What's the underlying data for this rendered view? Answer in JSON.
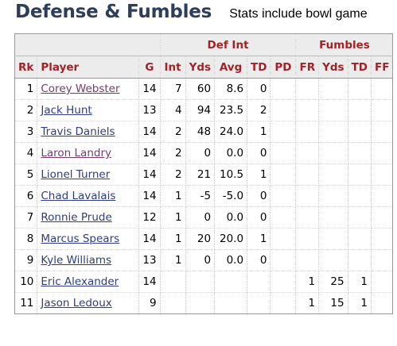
{
  "page": {
    "title": "Defense & Fumbles",
    "subtitle": "Stats include bowl game"
  },
  "table": {
    "over_headers": {
      "def_int": "Def Int",
      "fumbles": "Fumbles"
    },
    "columns": [
      "Rk",
      "Player",
      "G",
      "Int",
      "Yds",
      "Avg",
      "TD",
      "PD",
      "FR",
      "Yds",
      "TD",
      "FF"
    ],
    "rows": [
      {
        "rk": "1",
        "player": "Corey Webster",
        "visited": true,
        "g": "14",
        "int": "7",
        "int_yds": "60",
        "avg": "8.6",
        "int_td": "0",
        "pd": "",
        "fr": "",
        "fr_yds": "",
        "fr_td": "",
        "ff": ""
      },
      {
        "rk": "2",
        "player": "Jack Hunt",
        "visited": false,
        "g": "13",
        "int": "4",
        "int_yds": "94",
        "avg": "23.5",
        "int_td": "2",
        "pd": "",
        "fr": "",
        "fr_yds": "",
        "fr_td": "",
        "ff": ""
      },
      {
        "rk": "3",
        "player": "Travis Daniels",
        "visited": false,
        "g": "14",
        "int": "2",
        "int_yds": "48",
        "avg": "24.0",
        "int_td": "1",
        "pd": "",
        "fr": "",
        "fr_yds": "",
        "fr_td": "",
        "ff": ""
      },
      {
        "rk": "4",
        "player": "Laron Landry",
        "visited": true,
        "g": "14",
        "int": "2",
        "int_yds": "0",
        "avg": "0.0",
        "int_td": "0",
        "pd": "",
        "fr": "",
        "fr_yds": "",
        "fr_td": "",
        "ff": ""
      },
      {
        "rk": "5",
        "player": "Lionel Turner",
        "visited": false,
        "g": "14",
        "int": "2",
        "int_yds": "21",
        "avg": "10.5",
        "int_td": "1",
        "pd": "",
        "fr": "",
        "fr_yds": "",
        "fr_td": "",
        "ff": ""
      },
      {
        "rk": "6",
        "player": "Chad Lavalais",
        "visited": false,
        "g": "14",
        "int": "1",
        "int_yds": "-5",
        "avg": "-5.0",
        "int_td": "0",
        "pd": "",
        "fr": "",
        "fr_yds": "",
        "fr_td": "",
        "ff": ""
      },
      {
        "rk": "7",
        "player": "Ronnie Prude",
        "visited": false,
        "g": "12",
        "int": "1",
        "int_yds": "0",
        "avg": "0.0",
        "int_td": "0",
        "pd": "",
        "fr": "",
        "fr_yds": "",
        "fr_td": "",
        "ff": ""
      },
      {
        "rk": "8",
        "player": "Marcus Spears",
        "visited": false,
        "g": "14",
        "int": "1",
        "int_yds": "20",
        "avg": "20.0",
        "int_td": "1",
        "pd": "",
        "fr": "",
        "fr_yds": "",
        "fr_td": "",
        "ff": ""
      },
      {
        "rk": "9",
        "player": "Kyle Williams",
        "visited": false,
        "g": "13",
        "int": "1",
        "int_yds": "0",
        "avg": "0.0",
        "int_td": "0",
        "pd": "",
        "fr": "",
        "fr_yds": "",
        "fr_td": "",
        "ff": ""
      },
      {
        "rk": "10",
        "player": "Eric Alexander",
        "visited": false,
        "g": "14",
        "int": "",
        "int_yds": "",
        "avg": "",
        "int_td": "",
        "pd": "",
        "fr": "1",
        "fr_yds": "25",
        "fr_td": "1",
        "ff": ""
      },
      {
        "rk": "11",
        "player": "Jason Ledoux",
        "visited": false,
        "g": "9",
        "int": "",
        "int_yds": "",
        "avg": "",
        "int_td": "",
        "pd": "",
        "fr": "1",
        "fr_yds": "15",
        "fr_td": "1",
        "ff": ""
      }
    ]
  },
  "colors": {
    "title": "#2c3e5c",
    "header_text": "#a52226",
    "header_bg": "#ececec",
    "link": "#2d3d8a",
    "link_visited": "#7b3a6e"
  }
}
